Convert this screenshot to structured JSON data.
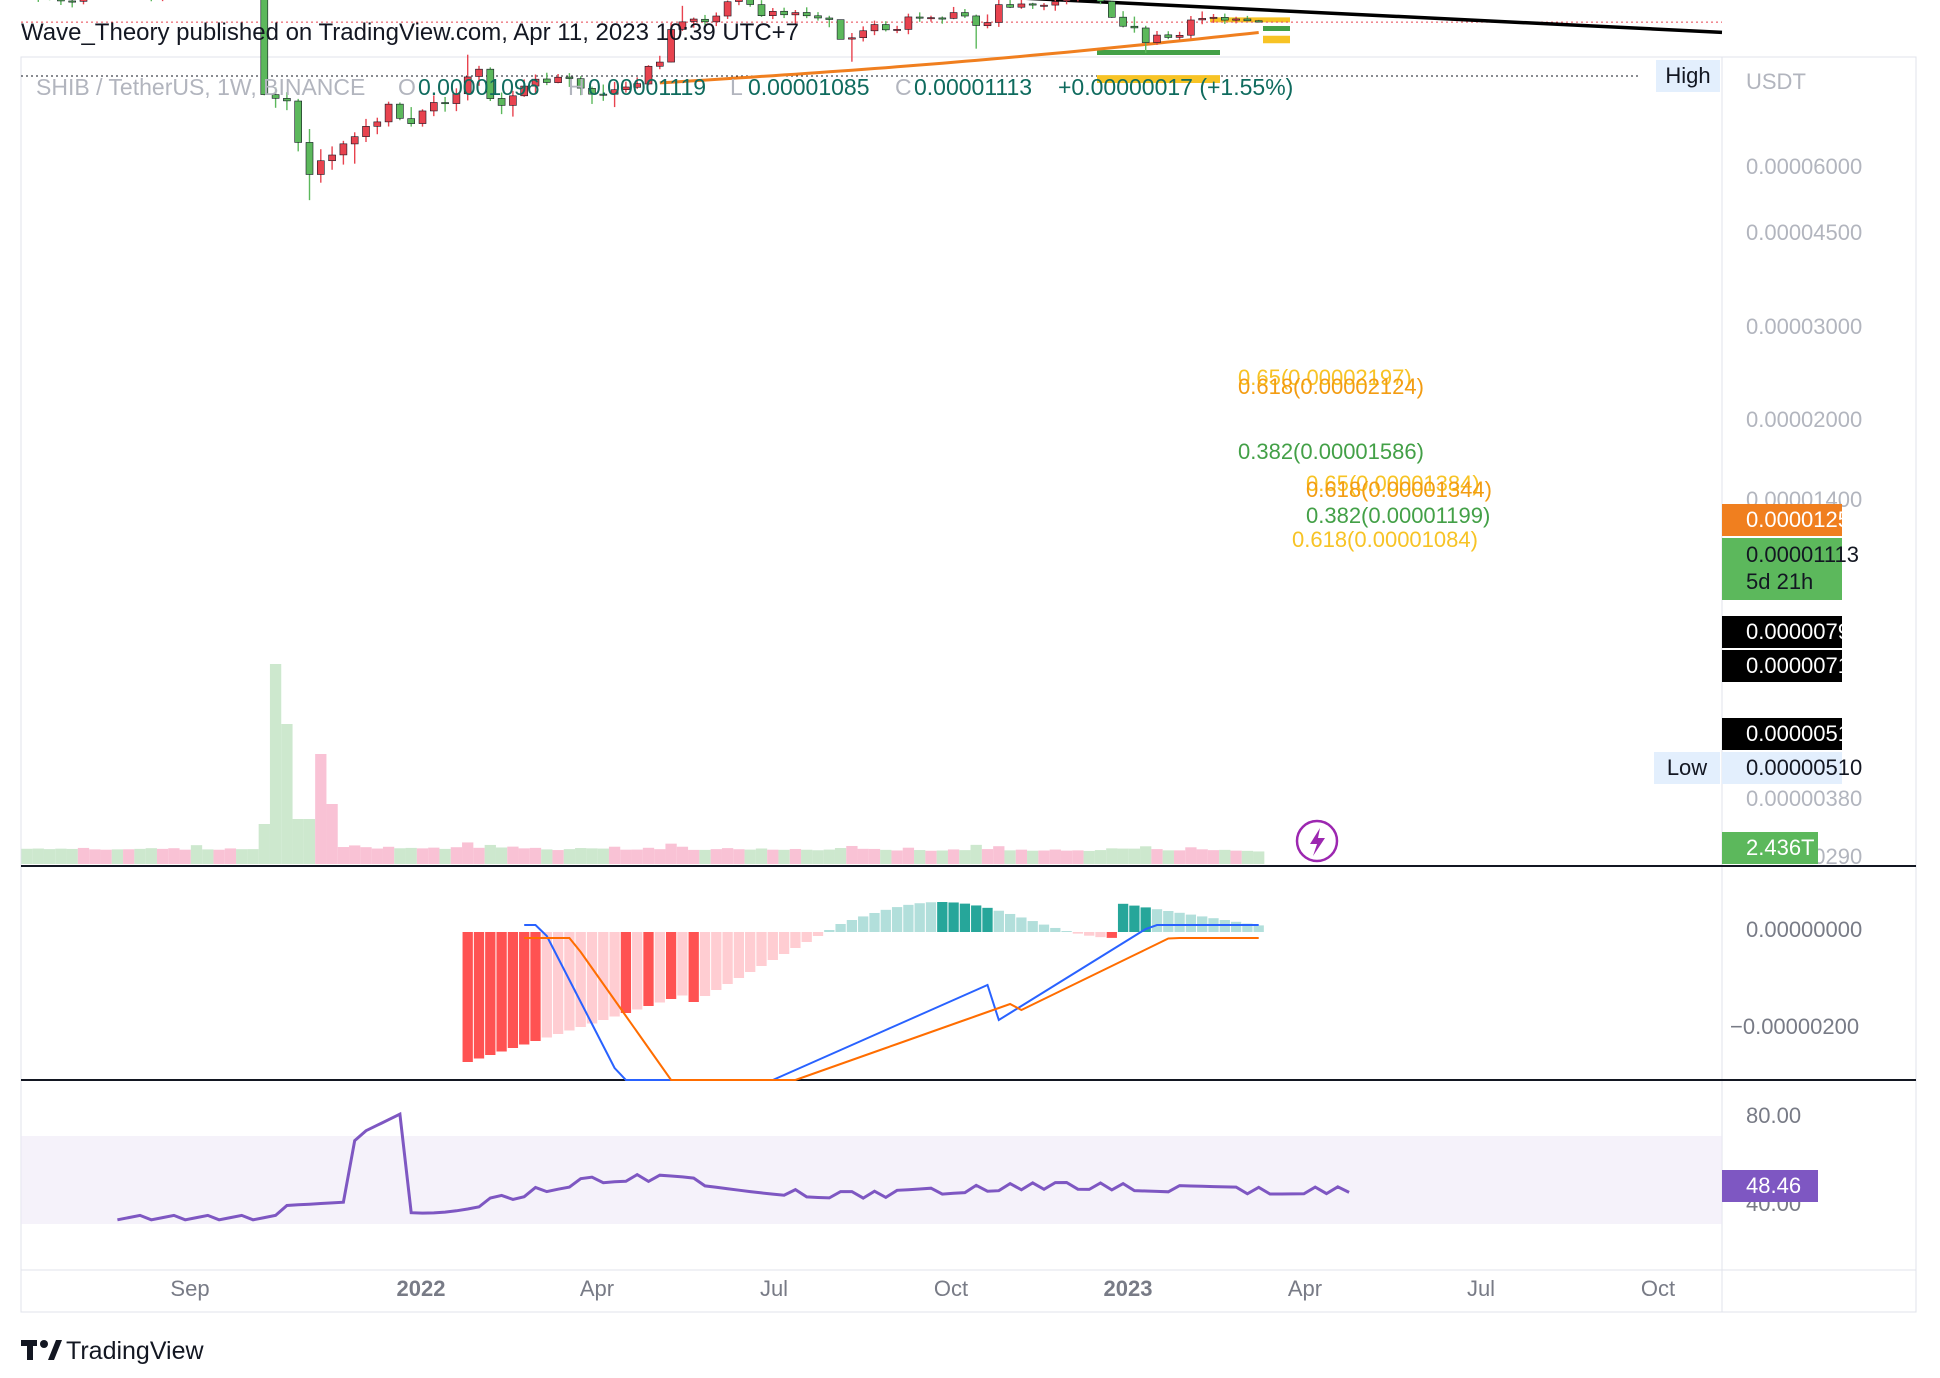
{
  "header": {
    "publisher": "Wave_Theory published on TradingView.com, Apr 11, 2023 10:39 UTC+7",
    "symbol": "SHIB / TetherUS, 1W, BINANCE",
    "ohlc": {
      "o_label": "O",
      "o": "0.00001096",
      "h_label": "H",
      "h": "0.00001119",
      "l_label": "L",
      "l": "0.00001085",
      "c_label": "C",
      "c": "0.00001113",
      "change": "+0.00000017 (+1.55%)"
    }
  },
  "footer": {
    "brand": "TradingView"
  },
  "price_axis": {
    "currency": "USDT",
    "high_label": "High",
    "low_label": "Low",
    "low_value": "0.00000510",
    "ticks": [
      "0.00006000",
      "0.00004500",
      "0.00003000",
      "0.00002000",
      "0.00001400",
      "0.00000380",
      "0.00000290"
    ],
    "badges": {
      "ma": "0.00001254",
      "last_price": "0.00001113",
      "countdown": "5d 21h",
      "support1": "0.00000793",
      "support2": "0.00000714",
      "support3": "0.00000510",
      "volume": "2.436T"
    }
  },
  "macd_axis": {
    "ticks": [
      "0.00000000",
      "−0.00000200"
    ]
  },
  "rsi_axis": {
    "ticks": [
      "80.00",
      "40.00"
    ],
    "value": "48.46"
  },
  "time_axis": {
    "ticks": [
      "Sep",
      "2022",
      "Apr",
      "Jul",
      "Oct",
      "2023",
      "Apr",
      "Jul",
      "Oct"
    ]
  },
  "fib_labels": {
    "f065": "0.65(0.00002197)",
    "f0618_upper": "0.618(0.00002124)",
    "f0382_upper": "0.382(0.00001586)",
    "f065_mid": "0.65(0.00001384)",
    "f0618_mid": "0.618(0.00001344)",
    "f0382_lower": "0.382(0.00001199)",
    "f0618_lower": "0.618(0.00001084)"
  },
  "colors": {
    "up": "#26a69a",
    "candle_up": "#5cb85c",
    "down": "#e8434f",
    "ma": "#f07f1f",
    "macd": "#2962ff",
    "signal": "#ff6d00",
    "rsi": "#7e57c2",
    "fib_gold": "#f7c325",
    "fib_green": "#43a047"
  },
  "chart_data": [
    {
      "type": "candlestick",
      "title": "SHIB / TetherUS, 1W, BINANCE",
      "y_scale": "log",
      "series": [
        {
          "name": "SHIB / TetherUS",
          "ohlc": [
            [
              7.39e-06,
              7.76e-06,
              6.49e-06,
              7.65e-06
            ],
            [
              7.61e-06,
              8.8e-06,
              7.26e-06,
              8.02e-06
            ],
            [
              8.02e-06,
              8.63e-06,
              7.35e-06,
              8.16e-06
            ],
            [
              8.33e-06,
              9.12e-06,
              7.57e-06,
              8.7e-06
            ],
            [
              8.7e-06,
              9.38e-06,
              7.91e-06,
              8.73e-06
            ],
            [
              8.74e-06,
              9.05e-06,
              7.22e-06,
              7.58e-06
            ],
            [
              7.58e-06,
              7.83e-06,
              6.76e-06,
              7.18e-06
            ],
            [
              7.16e-06,
              7.88e-06,
              6.94e-06,
              6.97e-06
            ],
            [
              6.97e-06,
              7.95e-06,
              6.87e-06,
              7.33e-06
            ],
            [
              7.34e-06,
              7.8e-06,
              6.71e-06,
              7.16e-06
            ],
            [
              7.17e-06,
              8.5e-06,
              7.15e-06,
              7.94e-06
            ],
            [
              7.87e-06,
              8.73e-06,
              7.06e-06,
              8.32e-06
            ],
            [
              8.32e-06,
              8.72e-06,
              7.33e-06,
              7.77e-06
            ],
            [
              7.76e-06,
              8.44e-06,
              6.84e-06,
              7.43e-06
            ],
            [
              7.37e-06,
              7.75e-06,
              6.81e-06,
              7.12e-06
            ],
            [
              7.1e-06,
              7.5e-06,
              5.13e-06,
              7.4e-06
            ],
            [
              7.4e-06,
              7.9e-06,
              6.84e-06,
              7.76e-06
            ],
            [
              7.76e-06,
              8.31e-06,
              7.33e-06,
              7.67e-06
            ],
            [
              7.65e-06,
              8.37e-06,
              6.86e-06,
              7.11e-06
            ],
            [
              7.11e-06,
              8.11e-06,
              6.94e-06,
              7.9e-06
            ],
            [
              7.83e-06,
              8.44e-06,
              7.19e-06,
              8.24e-06
            ],
            [
              8.23e-06,
              2.611e-05,
              8.23e-06,
              2.589e-05
            ],
            [
              2.589e-05,
              3.02e-05,
              2.382e-05,
              2.706e-05
            ],
            [
              2.706e-05,
              3.105e-05,
              2.519e-05,
              2.786e-05
            ],
            [
              2.791e-05,
              5.017e-05,
              2.722e-05,
              4.52e-05
            ],
            [
              4.52e-05,
              8.854e-05,
              3.866e-05,
              6.567e-05
            ],
            [
              6.567e-05,
              7.225e-05,
              4.892e-05,
              5.594e-05
            ],
            [
              5.594e-05,
              6.215e-05,
              4.734e-05,
              5.234e-05
            ],
            [
              5.227e-05,
              5.852e-05,
              4.437e-05,
              4.595e-05
            ],
            [
              4.599e-05,
              5.79e-05,
              4.017e-05,
              4.226e-05
            ],
            [
              4.226e-05,
              4.499e-05,
              3.437e-05,
              3.748e-05
            ],
            [
              3.748e-05,
              4.108e-05,
              3.389e-05,
              3.558e-05
            ],
            [
              3.558e-05,
              3.755e-05,
              2.812e-05,
              2.894e-05
            ],
            [
              2.894e-05,
              3.49e-05,
              2.838e-05,
              3.415e-05
            ],
            [
              3.425e-05,
              3.758e-05,
              2.995e-05,
              3.631e-05
            ],
            [
              3.629e-05,
              3.761e-05,
              3.072e-05,
              3.133e-05
            ],
            [
              3.133e-05,
              3.329e-05,
              2.613e-05,
              2.838e-05
            ],
            [
              2.84e-05,
              3.16e-05,
              2.662e-05,
              2.871e-05
            ],
            [
              2.875e-05,
              3.14e-05,
              2.407e-05,
              2.564e-05
            ],
            [
              2.564e-05,
              2.771e-05,
              1.627e-05,
              2.108e-05
            ],
            [
              2.097e-05,
              2.337e-05,
              1.853e-05,
              1.926e-05
            ],
            [
              1.926e-05,
              2.791e-05,
              1.885e-05,
              2.714e-05
            ],
            [
              2.708e-05,
              3.251e-05,
              2.529e-05,
              2.937e-05
            ],
            [
              2.937e-05,
              3.346e-05,
              2.481e-05,
              2.626e-05
            ],
            [
              2.626e-05,
              2.659e-05,
              2.17e-05,
              2.345e-05
            ],
            [
              2.345e-05,
              2.578e-05,
              2.049e-05,
              2.164e-05
            ],
            [
              2.159e-05,
              2.319e-05,
              2.007e-05,
              2.249e-05
            ],
            [
              2.253e-05,
              2.27e-05,
              2.037e-05,
              2.115e-05
            ],
            [
              2.111e-05,
              2.368e-05,
              2.017e-05,
              2.148e-05
            ],
            [
              2.151e-05,
              2.607e-05,
              2.092e-05,
              2.401e-05
            ],
            [
              2.407e-05,
              2.888e-05,
              2.359e-05,
              2.577e-05
            ],
            [
              2.575e-05,
              2.785e-05,
              2.303e-05,
              2.579e-05
            ],
            [
              2.579e-05,
              2.995e-05,
              2.233e-05,
              2.446e-05
            ],
            [
              2.446e-05,
              2.531e-05,
              2.227e-05,
              2.37e-05
            ],
            [
              2.378e-05,
              2.423e-05,
              2.118e-05,
              2.28e-05
            ],
            [
              2.289e-05,
              2.321e-05,
              1.838e-05,
              1.862e-05
            ],
            [
              1.862e-05,
              1.927e-05,
              1.648e-05,
              1.773e-05
            ],
            [
              1.773e-05,
              1.78e-05,
              1.12e-05,
              1.213e-05
            ],
            [
              1.213e-05,
              1.234e-05,
              9.21e-06,
              1.11e-05
            ],
            [
              1.105e-05,
              1.188e-05,
              1.056e-05,
              1.074e-05
            ],
            [
              1.077e-05,
              1.15e-05,
              1.024e-05,
              1.109e-05
            ],
            [
              1.11e-05,
              1.166e-05,
              9.95e-06,
              1.037e-05
            ],
            [
              1.037e-05,
              1.073e-05,
              8.65e-06,
              8.78e-06
            ],
            [
              8.76e-06,
              9.14e-06,
              7.84e-06,
              8.15e-06
            ],
            [
              8.15e-06,
              9.31e-06,
              8.16e-06,
              9.07e-06
            ],
            [
              9.08e-06,
              1.048e-05,
              8.62e-06,
              1.033e-05
            ],
            [
              1.033e-05,
              1.075e-05,
              9.45e-06,
              9.82e-06
            ],
            [
              9.81e-06,
              1.062e-05,
              9.41e-06,
              1.022e-05
            ],
            [
              1.023e-05,
              1.143e-05,
              9.67e-06,
              9.96e-06
            ],
            [
              9.95e-06,
              1.063e-05,
              9.37e-06,
              1.034e-05
            ],
            [
              1.034e-05,
              1.093e-05,
              9.91e-06,
              1.061e-05
            ],
            [
              1.061e-05,
              1.182e-05,
              1.034e-05,
              1.08e-05
            ],
            [
              1.082e-05,
              1.347e-05,
              1.08e-05,
              1.36e-05
            ],
            [
              1.357e-05,
              1.766e-05,
              1.264e-05,
              1.336e-05
            ],
            [
              1.335e-05,
              1.395e-05,
              1.17e-05,
              1.231e-05
            ],
            [
              1.232e-05,
              1.296e-05,
              1.094e-05,
              1.145e-05
            ],
            [
              1.145e-05,
              1.241e-05,
              1.102e-05,
              1.218e-05
            ],
            [
              1.217e-05,
              1.266e-05,
              1.162e-05,
              1.211e-05
            ],
            [
              1.212e-05,
              1.282e-05,
              1.009e-05,
              1.048e-05
            ],
            [
              1.049e-05,
              1.109e-05,
              9.94e-06,
              1.063e-05
            ],
            [
              1.062e-05,
              1.107e-05,
              1.033e-05,
              1.056e-05
            ],
            [
              1.06e-05,
              1.134e-05,
              1.042e-05,
              1.067e-05
            ],
            [
              1.066e-05,
              1.076e-05,
              9.33e-06,
              9.96e-06
            ],
            [
              9.96e-06,
              1.061e-05,
              9.56e-06,
              1.037e-05
            ],
            [
              1.036e-05,
              1.517e-05,
              1.02e-05,
              1.158e-05
            ],
            [
              1.161e-05,
              1.197e-05,
              1.018e-05,
              1.118e-05
            ],
            [
              1.118e-05,
              1.177e-05,
              8.53e-06,
              9.08e-06
            ],
            [
              9.07e-06,
              9.45e-06,
              8.61e-06,
              9.37e-06
            ],
            [
              9.36e-06,
              9.54e-06,
              8.38e-06,
              9.01e-06
            ],
            [
              9e-06,
              9.55e-06,
              8.89e-06,
              9.13e-06
            ],
            [
              9.16e-06,
              9.69e-06,
              8.92e-06,
              9.14e-06
            ],
            [
              9.13e-06,
              9.75e-06,
              8.51e-06,
              8.76e-06
            ],
            [
              8.69e-06,
              9.05e-06,
              8.39e-06,
              8.59e-06
            ],
            [
              8.58e-06,
              8.74e-06,
              7.98e-06,
              8.15e-06
            ],
            [
              8.18e-06,
              8.42e-06,
              7.94e-06,
              8.37e-06
            ],
            [
              8.37e-06,
              9.04e-06,
              8.12e-06,
              8.75e-06
            ],
            [
              8.75e-06,
              1.06e-05,
              8.65e-06,
              1.053e-05
            ],
            [
              1.051e-05,
              1.185e-05,
              9.8e-06,
              1.168e-05
            ],
            [
              1.168e-05,
              1.259e-05,
              1.044e-05,
              1.191e-05
            ],
            [
              1.192e-05,
              1.595e-05,
              1.162e-05,
              1.413e-05
            ],
            [
              1.412e-05,
              1.451e-05,
              1.235e-05,
              1.295e-05
            ],
            [
              1.291e-05,
              1.358e-05,
              1.238e-05,
              1.331e-05
            ],
            [
              1.33e-05,
              1.366e-05,
              1.246e-05,
              1.298e-05
            ],
            [
              1.297e-05,
              1.346e-05,
              1.037e-05,
              1.086e-05
            ],
            [
              1.085e-05,
              1.141e-05,
              9.83e-06,
              1.066e-05
            ],
            [
              1.063e-05,
              1.123e-05,
              1.013e-05,
              1.052e-05
            ],
            [
              1.053e-05,
              1.136e-05,
              1.008e-05,
              1.088e-05
            ],
            [
              1.089e-05,
              1.129e-05,
              1.046e-05,
              1.073e-05
            ],
            [
              1.073e-05,
              1.102e-05,
              1.035e-05,
              1.096e-05
            ],
            [
              1.096e-05,
              1.119e-05,
              1.085e-05,
              1.113e-05
            ]
          ]
        },
        {
          "name": "MA (weekly)",
          "values_note": "orange moving average",
          "start_value": 2.26e-05,
          "end_value": 1.254e-05
        },
        {
          "name": "RSI",
          "last": 48.46
        }
      ],
      "x_tick_labels": [
        "Sep",
        "2022",
        "Apr",
        "Jul",
        "Oct",
        "2023",
        "Apr",
        "Jul",
        "Oct"
      ],
      "y_tick_labels": [
        "0.00006000",
        "0.00004500",
        "0.00003000",
        "0.00002000",
        "0.00001400",
        "0.00000380",
        "0.00000290"
      ],
      "horizontal_levels": [
        7.93e-06,
        7.14e-06,
        5.1e-06
      ],
      "trendlines": [
        {
          "name": "ascending support",
          "from": [
            "Aug 2021",
            5.1e-06
          ],
          "to": [
            "Jul 2023",
            1.254e-05
          ]
        },
        {
          "name": "lower support",
          "from": [
            "Jun 2022",
            7.14e-06
          ],
          "to": [
            "Jul 2023",
            7.14e-06
          ]
        }
      ],
      "fibonacci": [
        {
          "ratio": 0.65,
          "price": 2.197e-05
        },
        {
          "ratio": 0.618,
          "price": 2.124e-05
        },
        {
          "ratio": 0.382,
          "price": 1.586e-05
        },
        {
          "ratio": 0.65,
          "price": 1.384e-05
        },
        {
          "ratio": 0.618,
          "price": 1.344e-05
        },
        {
          "ratio": 0.382,
          "price": 1.199e-05
        },
        {
          "ratio": 0.618,
          "price": 1.084e-05
        }
      ]
    }
  ]
}
